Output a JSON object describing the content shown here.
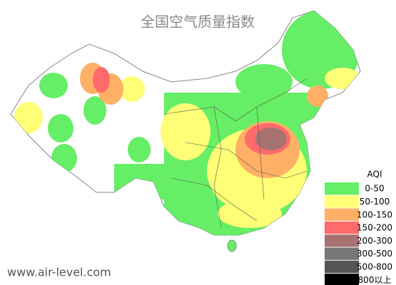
{
  "title": "全国空气质量指数",
  "footer": "www.air-level.com",
  "legend": {
    "title": "AQI",
    "items": [
      {
        "label": "0-50",
        "color": "#66ee66"
      },
      {
        "label": "50-100",
        "color": "#ffff77"
      },
      {
        "label": "100-150",
        "color": "#ffb066"
      },
      {
        "label": "150-200",
        "color": "#ff6a6a"
      },
      {
        "label": "200-300",
        "color": "#a87272"
      },
      {
        "label": "300-500",
        "color": "#777777"
      },
      {
        "label": "500-800",
        "color": "#555555"
      },
      {
        "label": "800以上",
        "color": "#000000"
      }
    ]
  }
}
